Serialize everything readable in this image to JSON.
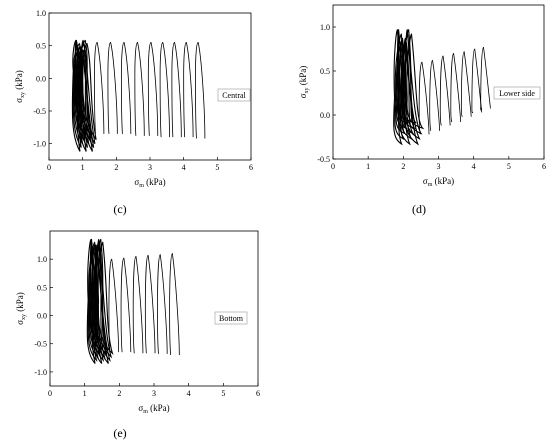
{
  "chart_data": [
    {
      "type": "line",
      "panel_label": "(c)",
      "xlabel_main": "σ",
      "xlabel_sub": "m",
      "xlabel_unit": " (kPa)",
      "ylabel_main": "σ",
      "ylabel_sub": "xy",
      "ylabel_unit": " (kPa)",
      "xlim": [
        0,
        6
      ],
      "ylim": [
        -1.25,
        1.0
      ],
      "xticks": [
        "0",
        "1",
        "2",
        "3",
        "4",
        "5",
        "6"
      ],
      "yticks": [
        "-1.0",
        "-0.5",
        "0.0",
        "0.5",
        "1.0"
      ],
      "ytick_values": [
        -1.0,
        -0.5,
        0.0,
        0.5,
        1.0
      ],
      "legend": "Central",
      "dense": {
        "x_min": 0.72,
        "x_max": 1.2,
        "y_top": 0.58,
        "y_bot": -1.12
      },
      "loops": [
        {
          "x_start": 1.35,
          "y_top": 0.55,
          "y_bot": -0.85
        },
        {
          "x_start": 1.75,
          "y_top": 0.55,
          "y_bot": -0.85
        },
        {
          "x_start": 2.15,
          "y_top": 0.55,
          "y_bot": -0.85
        },
        {
          "x_start": 2.55,
          "y_top": 0.55,
          "y_bot": -0.88
        },
        {
          "x_start": 2.95,
          "y_top": 0.55,
          "y_bot": -0.88
        },
        {
          "x_start": 3.3,
          "y_top": 0.55,
          "y_bot": -0.9
        },
        {
          "x_start": 3.65,
          "y_top": 0.55,
          "y_bot": -0.9
        },
        {
          "x_start": 4.0,
          "y_top": 0.55,
          "y_bot": -0.9
        },
        {
          "x_start": 4.35,
          "y_top": 0.55,
          "y_bot": -0.92
        }
      ]
    },
    {
      "type": "line",
      "panel_label": "(d)",
      "xlabel_main": "σ",
      "xlabel_sub": "m",
      "xlabel_unit": " (kPa)",
      "ylabel_main": "σ",
      "ylabel_sub": "xy",
      "ylabel_unit": " (kPa)",
      "xlim": [
        0,
        6
      ],
      "ylim": [
        -0.5,
        1.25
      ],
      "xticks": [
        "0",
        "1",
        "2",
        "3",
        "4",
        "5",
        "6"
      ],
      "yticks": [
        "-0.5",
        "0.0",
        "0.5",
        "1.0"
      ],
      "ytick_values": [
        -0.5,
        0.0,
        0.5,
        1.0
      ],
      "legend": "Lower side",
      "dense": {
        "x_min": 1.75,
        "x_max": 2.35,
        "y_top": 0.97,
        "y_bot": -0.33
      },
      "loops": [
        {
          "x_start": 2.45,
          "y_top": 0.6,
          "y_bot": -0.22
        },
        {
          "x_start": 2.75,
          "y_top": 0.62,
          "y_bot": -0.18
        },
        {
          "x_start": 3.05,
          "y_top": 0.67,
          "y_bot": -0.12
        },
        {
          "x_start": 3.35,
          "y_top": 0.7,
          "y_bot": -0.08
        },
        {
          "x_start": 3.65,
          "y_top": 0.72,
          "y_bot": -0.02
        },
        {
          "x_start": 3.95,
          "y_top": 0.75,
          "y_bot": 0.03
        },
        {
          "x_start": 4.2,
          "y_top": 0.77,
          "y_bot": 0.08
        }
      ]
    },
    {
      "type": "line",
      "panel_label": "(e)",
      "xlabel_main": "σ",
      "xlabel_sub": "m",
      "xlabel_unit": " (kPa)",
      "ylabel_main": "σ",
      "ylabel_sub": "xy",
      "ylabel_unit": " (kPa)",
      "xlim": [
        0,
        6
      ],
      "ylim": [
        -1.25,
        1.5
      ],
      "xticks": [
        "0",
        "1",
        "2",
        "3",
        "4",
        "5",
        "6"
      ],
      "yticks": [
        "-1.0",
        "-0.5",
        "0.0",
        "0.5",
        "1.0"
      ],
      "ytick_values": [
        -1.0,
        -0.5,
        0.0,
        0.5,
        1.0
      ],
      "legend": "Bottom",
      "dense": {
        "x_min": 1.1,
        "x_max": 1.6,
        "y_top": 1.35,
        "y_bot": -0.85
      },
      "loops": [
        {
          "x_start": 1.7,
          "y_top": 1.0,
          "y_bot": -0.65
        },
        {
          "x_start": 2.05,
          "y_top": 1.02,
          "y_bot": -0.65
        },
        {
          "x_start": 2.4,
          "y_top": 1.05,
          "y_bot": -0.67
        },
        {
          "x_start": 2.75,
          "y_top": 1.07,
          "y_bot": -0.67
        },
        {
          "x_start": 3.1,
          "y_top": 1.08,
          "y_bot": -0.68
        },
        {
          "x_start": 3.45,
          "y_top": 1.1,
          "y_bot": -0.7
        }
      ]
    }
  ]
}
